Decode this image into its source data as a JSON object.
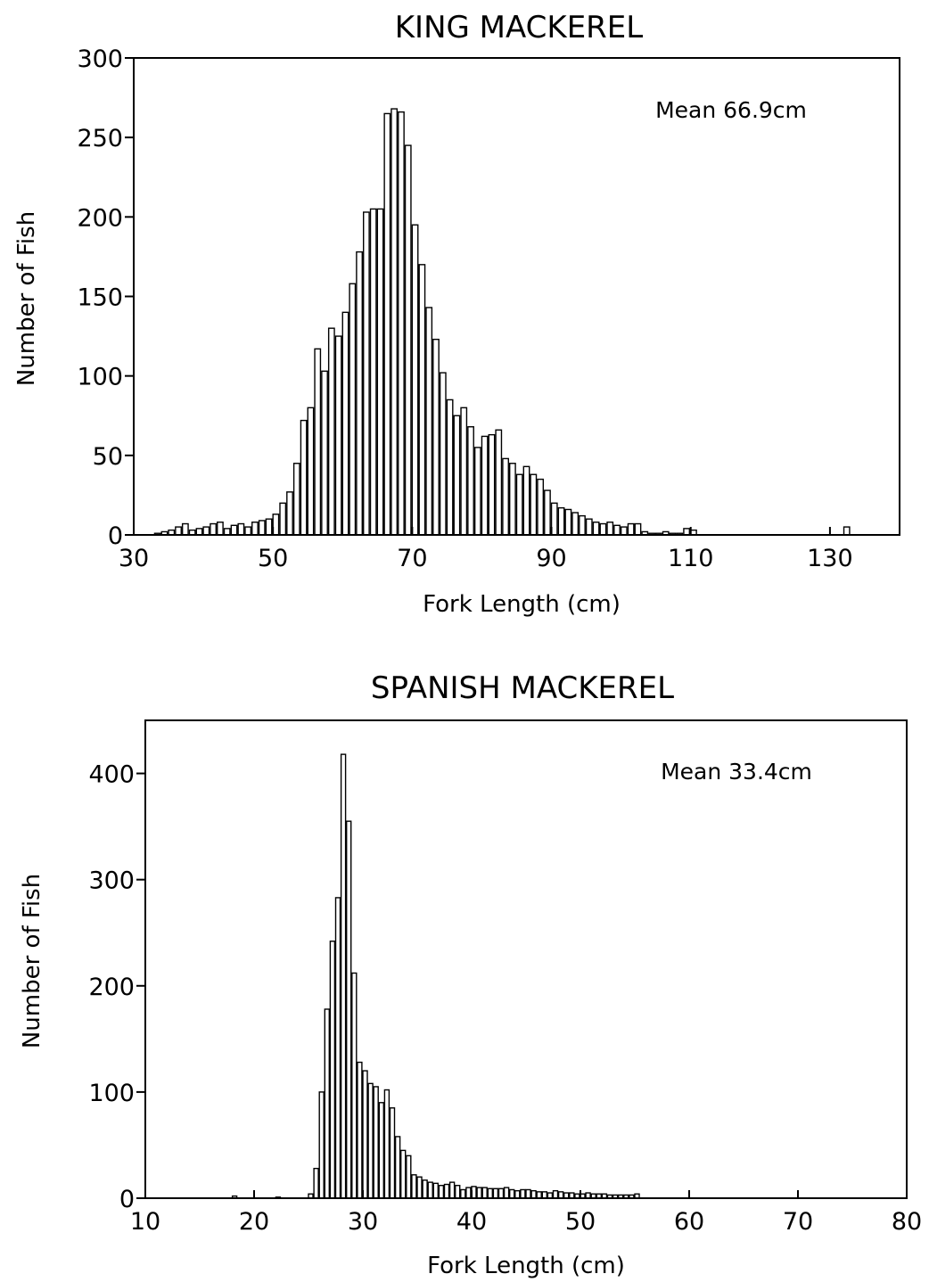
{
  "chart_data": [
    {
      "type": "bar",
      "title": "KING MACKEREL",
      "xlabel": "Fork Length (cm)",
      "ylabel": "Number of Fish",
      "annotation": "Mean 66.9cm",
      "xlim": [
        30,
        140
      ],
      "ylim": [
        0,
        300
      ],
      "xticks": [
        30,
        50,
        70,
        90,
        110,
        130
      ],
      "yticks": [
        0,
        50,
        100,
        150,
        200,
        250,
        300
      ],
      "grid": false,
      "bin_start": 33,
      "bin_width": 1,
      "values": [
        1,
        2,
        3,
        5,
        7,
        3,
        4,
        5,
        7,
        8,
        4,
        6,
        7,
        5,
        8,
        9,
        10,
        13,
        20,
        27,
        45,
        72,
        80,
        117,
        103,
        130,
        125,
        140,
        158,
        178,
        203,
        205,
        205,
        265,
        268,
        266,
        245,
        195,
        170,
        143,
        123,
        102,
        85,
        75,
        80,
        68,
        55,
        62,
        63,
        66,
        48,
        45,
        38,
        43,
        38,
        35,
        28,
        20,
        17,
        16,
        14,
        12,
        10,
        8,
        7,
        8,
        6,
        5,
        7,
        7,
        2,
        1,
        1,
        2,
        1,
        1,
        4,
        3
      ],
      "sparse_points": [
        {
          "x": 132,
          "y": 5
        }
      ]
    },
    {
      "type": "bar",
      "title": "SPANISH MACKEREL",
      "xlabel": "Fork Length (cm)",
      "ylabel": "Number of Fish",
      "annotation": "Mean 33.4cm",
      "xlim": [
        10,
        80
      ],
      "ylim": [
        0,
        450
      ],
      "xticks": [
        10,
        20,
        30,
        40,
        50,
        60,
        70,
        80
      ],
      "yticks": [
        0,
        100,
        200,
        300,
        400
      ],
      "grid": false,
      "bin_start": 25,
      "bin_width": 0.5,
      "values": [
        4,
        28,
        100,
        178,
        242,
        283,
        418,
        355,
        212,
        128,
        120,
        108,
        105,
        90,
        102,
        85,
        58,
        45,
        40,
        22,
        20,
        17,
        15,
        14,
        12,
        13,
        15,
        12,
        8,
        10,
        11,
        10,
        10,
        9,
        9,
        9,
        10,
        8,
        7,
        8,
        8,
        7,
        6,
        6,
        5,
        7,
        6,
        5,
        5,
        4,
        4,
        5,
        4,
        4,
        4,
        3,
        3,
        3,
        3,
        3,
        4
      ],
      "sparse_points": [
        {
          "x": 18,
          "y": 2
        },
        {
          "x": 22,
          "y": 1
        }
      ]
    }
  ]
}
